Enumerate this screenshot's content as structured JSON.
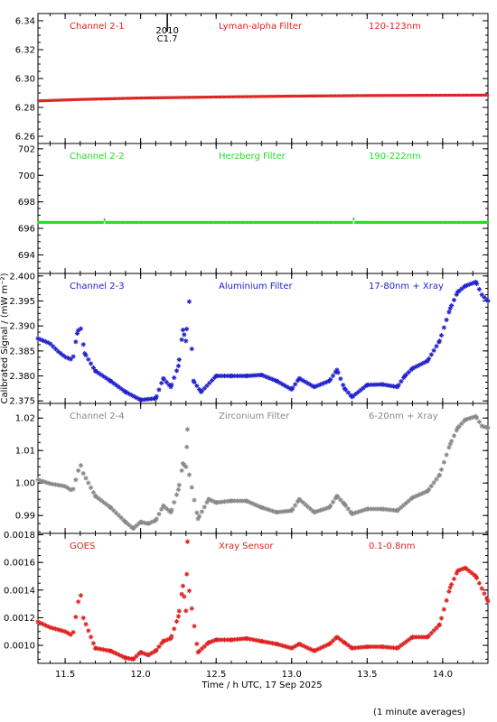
{
  "chart_data": {
    "type": "scatter",
    "x_axis": {
      "label": "Time / h UTC, 17 Sep 2025",
      "range": [
        11.32,
        14.3
      ],
      "ticks": [
        11.5,
        12.0,
        12.5,
        13.0,
        13.5,
        14.0
      ],
      "tick_labels": [
        "11.5",
        "12.0",
        "12.5",
        "13.0",
        "13.5",
        "14.0"
      ]
    },
    "y_axis_label": "Calibrated Signal / (mW m⁻²)",
    "footnote": "(1 minute averages)",
    "flare_marker": {
      "x": 12.32,
      "label_top": "2010",
      "label_bottom": "C1.7"
    },
    "grid": false,
    "panels": [
      {
        "channel": "Channel 2-1",
        "filter": "Lyman-alpha Filter",
        "band": "120-123nm",
        "color": "#dd2222",
        "marker": "dot",
        "ylim": [
          6.255,
          6.345
        ],
        "yticks": [
          6.26,
          6.28,
          6.3,
          6.32,
          6.34
        ],
        "ytick_labels": [
          "6.26",
          "6.28",
          "6.30",
          "6.32",
          "6.34"
        ],
        "points": [
          [
            11.32,
            6.2845
          ],
          [
            11.6,
            6.2855
          ],
          [
            12.0,
            6.2865
          ],
          [
            12.5,
            6.2872
          ],
          [
            13.0,
            6.2878
          ],
          [
            13.5,
            6.2882
          ],
          [
            14.0,
            6.2884
          ],
          [
            14.3,
            6.2885
          ]
        ]
      },
      {
        "channel": "Channel 2-2",
        "filter": "Herzberg Filter",
        "band": "190-222nm",
        "color": "#22dd22",
        "marker": "dot",
        "ylim": [
          692.6,
          702.4
        ],
        "yticks": [
          694,
          696,
          698,
          700,
          702
        ],
        "ytick_labels": [
          "694",
          "696",
          "698",
          "700",
          "702"
        ],
        "points": [
          [
            11.32,
            696.45
          ],
          [
            11.75,
            696.45
          ],
          [
            11.76,
            696.65
          ],
          [
            11.77,
            696.45
          ],
          [
            13.4,
            696.45
          ],
          [
            13.41,
            696.7
          ],
          [
            13.42,
            696.45
          ],
          [
            14.3,
            696.45
          ]
        ]
      },
      {
        "channel": "Channel 2-3",
        "filter": "Aluminium Filter",
        "band": "17-80nm + Xray",
        "color": "#2222cc",
        "marker": "star",
        "ylim": [
          2.3745,
          2.4005
        ],
        "yticks": [
          2.375,
          2.38,
          2.385,
          2.39,
          2.395,
          2.4
        ],
        "ytick_labels": [
          "2.375",
          "2.380",
          "2.385",
          "2.390",
          "2.395",
          "2.400"
        ],
        "points": [
          [
            11.32,
            2.3875
          ],
          [
            11.4,
            2.3865
          ],
          [
            11.45,
            2.385
          ],
          [
            11.5,
            2.3838
          ],
          [
            11.55,
            2.3832
          ],
          [
            11.58,
            2.3885
          ],
          [
            11.6,
            2.3902
          ],
          [
            11.63,
            2.3845
          ],
          [
            11.7,
            2.381
          ],
          [
            11.8,
            2.379
          ],
          [
            11.9,
            2.3768
          ],
          [
            12.0,
            2.3752
          ],
          [
            12.1,
            2.3755
          ],
          [
            12.15,
            2.3795
          ],
          [
            12.2,
            2.3778
          ],
          [
            12.25,
            2.382
          ],
          [
            12.28,
            2.3892
          ],
          [
            12.3,
            2.387
          ],
          [
            12.32,
            2.396
          ],
          [
            12.35,
            2.379
          ],
          [
            12.4,
            2.3768
          ],
          [
            12.5,
            2.38
          ],
          [
            12.6,
            2.38
          ],
          [
            12.7,
            2.38
          ],
          [
            12.8,
            2.3802
          ],
          [
            12.9,
            2.379
          ],
          [
            13.0,
            2.3773
          ],
          [
            13.05,
            2.3795
          ],
          [
            13.15,
            2.3778
          ],
          [
            13.25,
            2.379
          ],
          [
            13.3,
            2.3812
          ],
          [
            13.35,
            2.3775
          ],
          [
            13.4,
            2.3758
          ],
          [
            13.5,
            2.3782
          ],
          [
            13.6,
            2.3783
          ],
          [
            13.7,
            2.3778
          ],
          [
            13.75,
            2.38
          ],
          [
            13.8,
            2.3815
          ],
          [
            13.9,
            2.383
          ],
          [
            13.98,
            2.387
          ],
          [
            14.05,
            2.3935
          ],
          [
            14.1,
            2.3968
          ],
          [
            14.15,
            2.398
          ],
          [
            14.22,
            2.3988
          ],
          [
            14.26,
            2.3962
          ],
          [
            14.3,
            2.395
          ]
        ]
      },
      {
        "channel": "Channel 2-4",
        "filter": "Zirconium Filter",
        "band": "6-20nm + Xray",
        "color": "#888888",
        "marker": "star",
        "ylim": [
          0.9845,
          1.0245
        ],
        "yticks": [
          0.99,
          1.0,
          1.01,
          1.02
        ],
        "ytick_labels": [
          "0.99",
          "1.00",
          "1.01",
          "1.02"
        ],
        "points": [
          [
            11.32,
            1.001
          ],
          [
            11.4,
            0.9998
          ],
          [
            11.5,
            0.999
          ],
          [
            11.55,
            0.9975
          ],
          [
            11.6,
            1.006
          ],
          [
            11.62,
            1.003
          ],
          [
            11.7,
            0.996
          ],
          [
            11.8,
            0.9925
          ],
          [
            11.9,
            0.988
          ],
          [
            11.95,
            0.986
          ],
          [
            12.0,
            0.988
          ],
          [
            12.05,
            0.9875
          ],
          [
            12.1,
            0.9885
          ],
          [
            12.15,
            0.993
          ],
          [
            12.2,
            0.991
          ],
          [
            12.25,
            0.998
          ],
          [
            12.28,
            1.006
          ],
          [
            12.3,
            1.005
          ],
          [
            12.31,
            1.0165
          ],
          [
            12.32,
            1.003
          ],
          [
            12.38,
            0.989
          ],
          [
            12.45,
            0.995
          ],
          [
            12.5,
            0.994
          ],
          [
            12.6,
            0.9945
          ],
          [
            12.7,
            0.9945
          ],
          [
            12.8,
            0.9925
          ],
          [
            12.9,
            0.991
          ],
          [
            13.0,
            0.9915
          ],
          [
            13.05,
            0.995
          ],
          [
            13.15,
            0.991
          ],
          [
            13.25,
            0.9925
          ],
          [
            13.3,
            0.996
          ],
          [
            13.35,
            0.9935
          ],
          [
            13.4,
            0.9905
          ],
          [
            13.5,
            0.992
          ],
          [
            13.6,
            0.992
          ],
          [
            13.7,
            0.9915
          ],
          [
            13.8,
            0.9955
          ],
          [
            13.9,
            0.9975
          ],
          [
            13.98,
            1.0025
          ],
          [
            14.05,
            1.012
          ],
          [
            14.1,
            1.017
          ],
          [
            14.15,
            1.0195
          ],
          [
            14.22,
            1.0205
          ],
          [
            14.26,
            1.0175
          ],
          [
            14.3,
            1.017
          ]
        ]
      },
      {
        "channel": "GOES",
        "filter": "Xray Sensor",
        "band": "0.1-0.8nm",
        "color": "#dd2222",
        "marker": "star",
        "ylim": [
          0.00087,
          0.00181
        ],
        "yticks": [
          0.001,
          0.0012,
          0.0014,
          0.0016,
          0.0018
        ],
        "ytick_labels": [
          "0.0010",
          "0.0012",
          "0.0014",
          "0.0016",
          "0.0018"
        ],
        "points": [
          [
            11.32,
            0.00117
          ],
          [
            11.4,
            0.00113
          ],
          [
            11.5,
            0.0011
          ],
          [
            11.55,
            0.00107
          ],
          [
            11.6,
            0.0014
          ],
          [
            11.62,
            0.0012
          ],
          [
            11.7,
            0.00098
          ],
          [
            11.8,
            0.00096
          ],
          [
            11.9,
            0.00091
          ],
          [
            11.95,
            0.0009
          ],
          [
            12.0,
            0.00095
          ],
          [
            12.05,
            0.00093
          ],
          [
            12.1,
            0.00096
          ],
          [
            12.15,
            0.00103
          ],
          [
            12.2,
            0.00105
          ],
          [
            12.25,
            0.00121
          ],
          [
            12.28,
            0.00143
          ],
          [
            12.3,
            0.00125
          ],
          [
            12.31,
            0.00175
          ],
          [
            12.32,
            0.00141
          ],
          [
            12.38,
            0.00095
          ],
          [
            12.45,
            0.00102
          ],
          [
            12.5,
            0.00104
          ],
          [
            12.6,
            0.00104
          ],
          [
            12.7,
            0.00105
          ],
          [
            12.8,
            0.00103
          ],
          [
            12.9,
            0.00101
          ],
          [
            13.0,
            0.00098
          ],
          [
            13.05,
            0.00101
          ],
          [
            13.15,
            0.00096
          ],
          [
            13.25,
            0.00101
          ],
          [
            13.3,
            0.00106
          ],
          [
            13.35,
            0.00102
          ],
          [
            13.4,
            0.00098
          ],
          [
            13.5,
            0.00099
          ],
          [
            13.6,
            0.00099
          ],
          [
            13.7,
            0.00098
          ],
          [
            13.8,
            0.00106
          ],
          [
            13.9,
            0.00106
          ],
          [
            13.98,
            0.00115
          ],
          [
            14.05,
            0.00142
          ],
          [
            14.1,
            0.00154
          ],
          [
            14.15,
            0.00156
          ],
          [
            14.22,
            0.0015
          ],
          [
            14.26,
            0.00141
          ],
          [
            14.3,
            0.00132
          ]
        ]
      }
    ]
  }
}
